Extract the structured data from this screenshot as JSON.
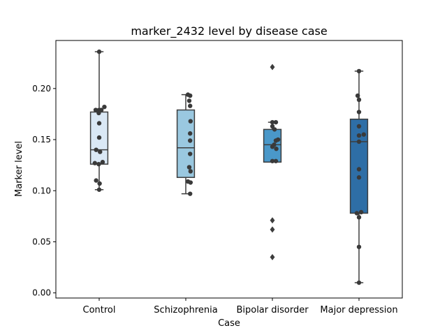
{
  "chart_data": {
    "type": "box",
    "title": "marker_2432 level by disease case",
    "xlabel": "Case",
    "ylabel": "Marker level",
    "ylim": [
      -0.005,
      0.247
    ],
    "yticks": [
      0.0,
      0.05,
      0.1,
      0.15,
      0.2
    ],
    "ytick_labels": [
      "0.00",
      "0.05",
      "0.10",
      "0.15",
      "0.20"
    ],
    "grid": false,
    "categories": [
      "Control",
      "Schizophrenia",
      "Bipolar disorder",
      "Major depression"
    ],
    "colors": [
      "#dae8f5",
      "#9ac8e0",
      "#4a98c9",
      "#2e6ea6"
    ],
    "boxes": [
      {
        "q1": 0.126,
        "median": 0.14,
        "q3": 0.177,
        "whislo": 0.101,
        "whishi": 0.236,
        "fliers": []
      },
      {
        "q1": 0.113,
        "median": 0.142,
        "q3": 0.179,
        "whislo": 0.097,
        "whishi": 0.194,
        "fliers": []
      },
      {
        "q1": 0.128,
        "median": 0.145,
        "q3": 0.16,
        "whislo": 0.128,
        "whishi": 0.167,
        "fliers": [
          0.221,
          0.071,
          0.062,
          0.035
        ]
      },
      {
        "q1": 0.078,
        "median": 0.148,
        "q3": 0.17,
        "whislo": 0.01,
        "whishi": 0.217,
        "fliers": []
      }
    ],
    "points": [
      [
        {
          "dx": 0.0,
          "y": 0.236
        },
        {
          "dx": -0.08,
          "y": 0.179
        },
        {
          "dx": 0.0,
          "y": 0.179
        },
        {
          "dx": 0.05,
          "y": 0.179
        },
        {
          "dx": 0.12,
          "y": 0.182
        },
        {
          "dx": -0.01,
          "y": 0.176
        },
        {
          "dx": 0.0,
          "y": 0.166
        },
        {
          "dx": 0.0,
          "y": 0.152
        },
        {
          "dx": -0.07,
          "y": 0.14
        },
        {
          "dx": 0.02,
          "y": 0.138
        },
        {
          "dx": -0.1,
          "y": 0.127
        },
        {
          "dx": -0.01,
          "y": 0.126
        },
        {
          "dx": 0.08,
          "y": 0.128
        },
        {
          "dx": -0.07,
          "y": 0.11
        },
        {
          "dx": 0.01,
          "y": 0.107
        },
        {
          "dx": 0.0,
          "y": 0.101
        }
      ],
      [
        {
          "dx": 0.05,
          "y": 0.194
        },
        {
          "dx": 0.1,
          "y": 0.193
        },
        {
          "dx": 0.08,
          "y": 0.188
        },
        {
          "dx": 0.1,
          "y": 0.183
        },
        {
          "dx": 0.11,
          "y": 0.168
        },
        {
          "dx": 0.1,
          "y": 0.156
        },
        {
          "dx": 0.1,
          "y": 0.149
        },
        {
          "dx": 0.1,
          "y": 0.136
        },
        {
          "dx": 0.08,
          "y": 0.123
        },
        {
          "dx": 0.11,
          "y": 0.119
        },
        {
          "dx": 0.05,
          "y": 0.109
        },
        {
          "dx": 0.11,
          "y": 0.108
        },
        {
          "dx": 0.1,
          "y": 0.097
        }
      ],
      [
        {
          "dx": 0.0,
          "y": 0.167
        },
        {
          "dx": 0.08,
          "y": 0.167
        },
        {
          "dx": 0.0,
          "y": 0.163
        },
        {
          "dx": 0.05,
          "y": 0.16
        },
        {
          "dx": 0.08,
          "y": 0.149
        },
        {
          "dx": 0.13,
          "y": 0.15
        },
        {
          "dx": 0.04,
          "y": 0.145
        },
        {
          "dx": 0.0,
          "y": 0.143
        },
        {
          "dx": 0.09,
          "y": 0.141
        },
        {
          "dx": 0.0,
          "y": 0.129
        },
        {
          "dx": 0.08,
          "y": 0.129
        }
      ],
      [
        {
          "dx": 0.0,
          "y": 0.217
        },
        {
          "dx": -0.03,
          "y": 0.193
        },
        {
          "dx": 0.0,
          "y": 0.189
        },
        {
          "dx": 0.0,
          "y": 0.177
        },
        {
          "dx": 0.0,
          "y": 0.163
        },
        {
          "dx": 0.11,
          "y": 0.155
        },
        {
          "dx": 0.0,
          "y": 0.154
        },
        {
          "dx": 0.0,
          "y": 0.148
        },
        {
          "dx": 0.0,
          "y": 0.121
        },
        {
          "dx": 0.0,
          "y": 0.113
        },
        {
          "dx": -0.05,
          "y": 0.078
        },
        {
          "dx": 0.05,
          "y": 0.079
        },
        {
          "dx": 0.0,
          "y": 0.074
        },
        {
          "dx": 0.0,
          "y": 0.045
        },
        {
          "dx": 0.0,
          "y": 0.01
        }
      ]
    ]
  }
}
